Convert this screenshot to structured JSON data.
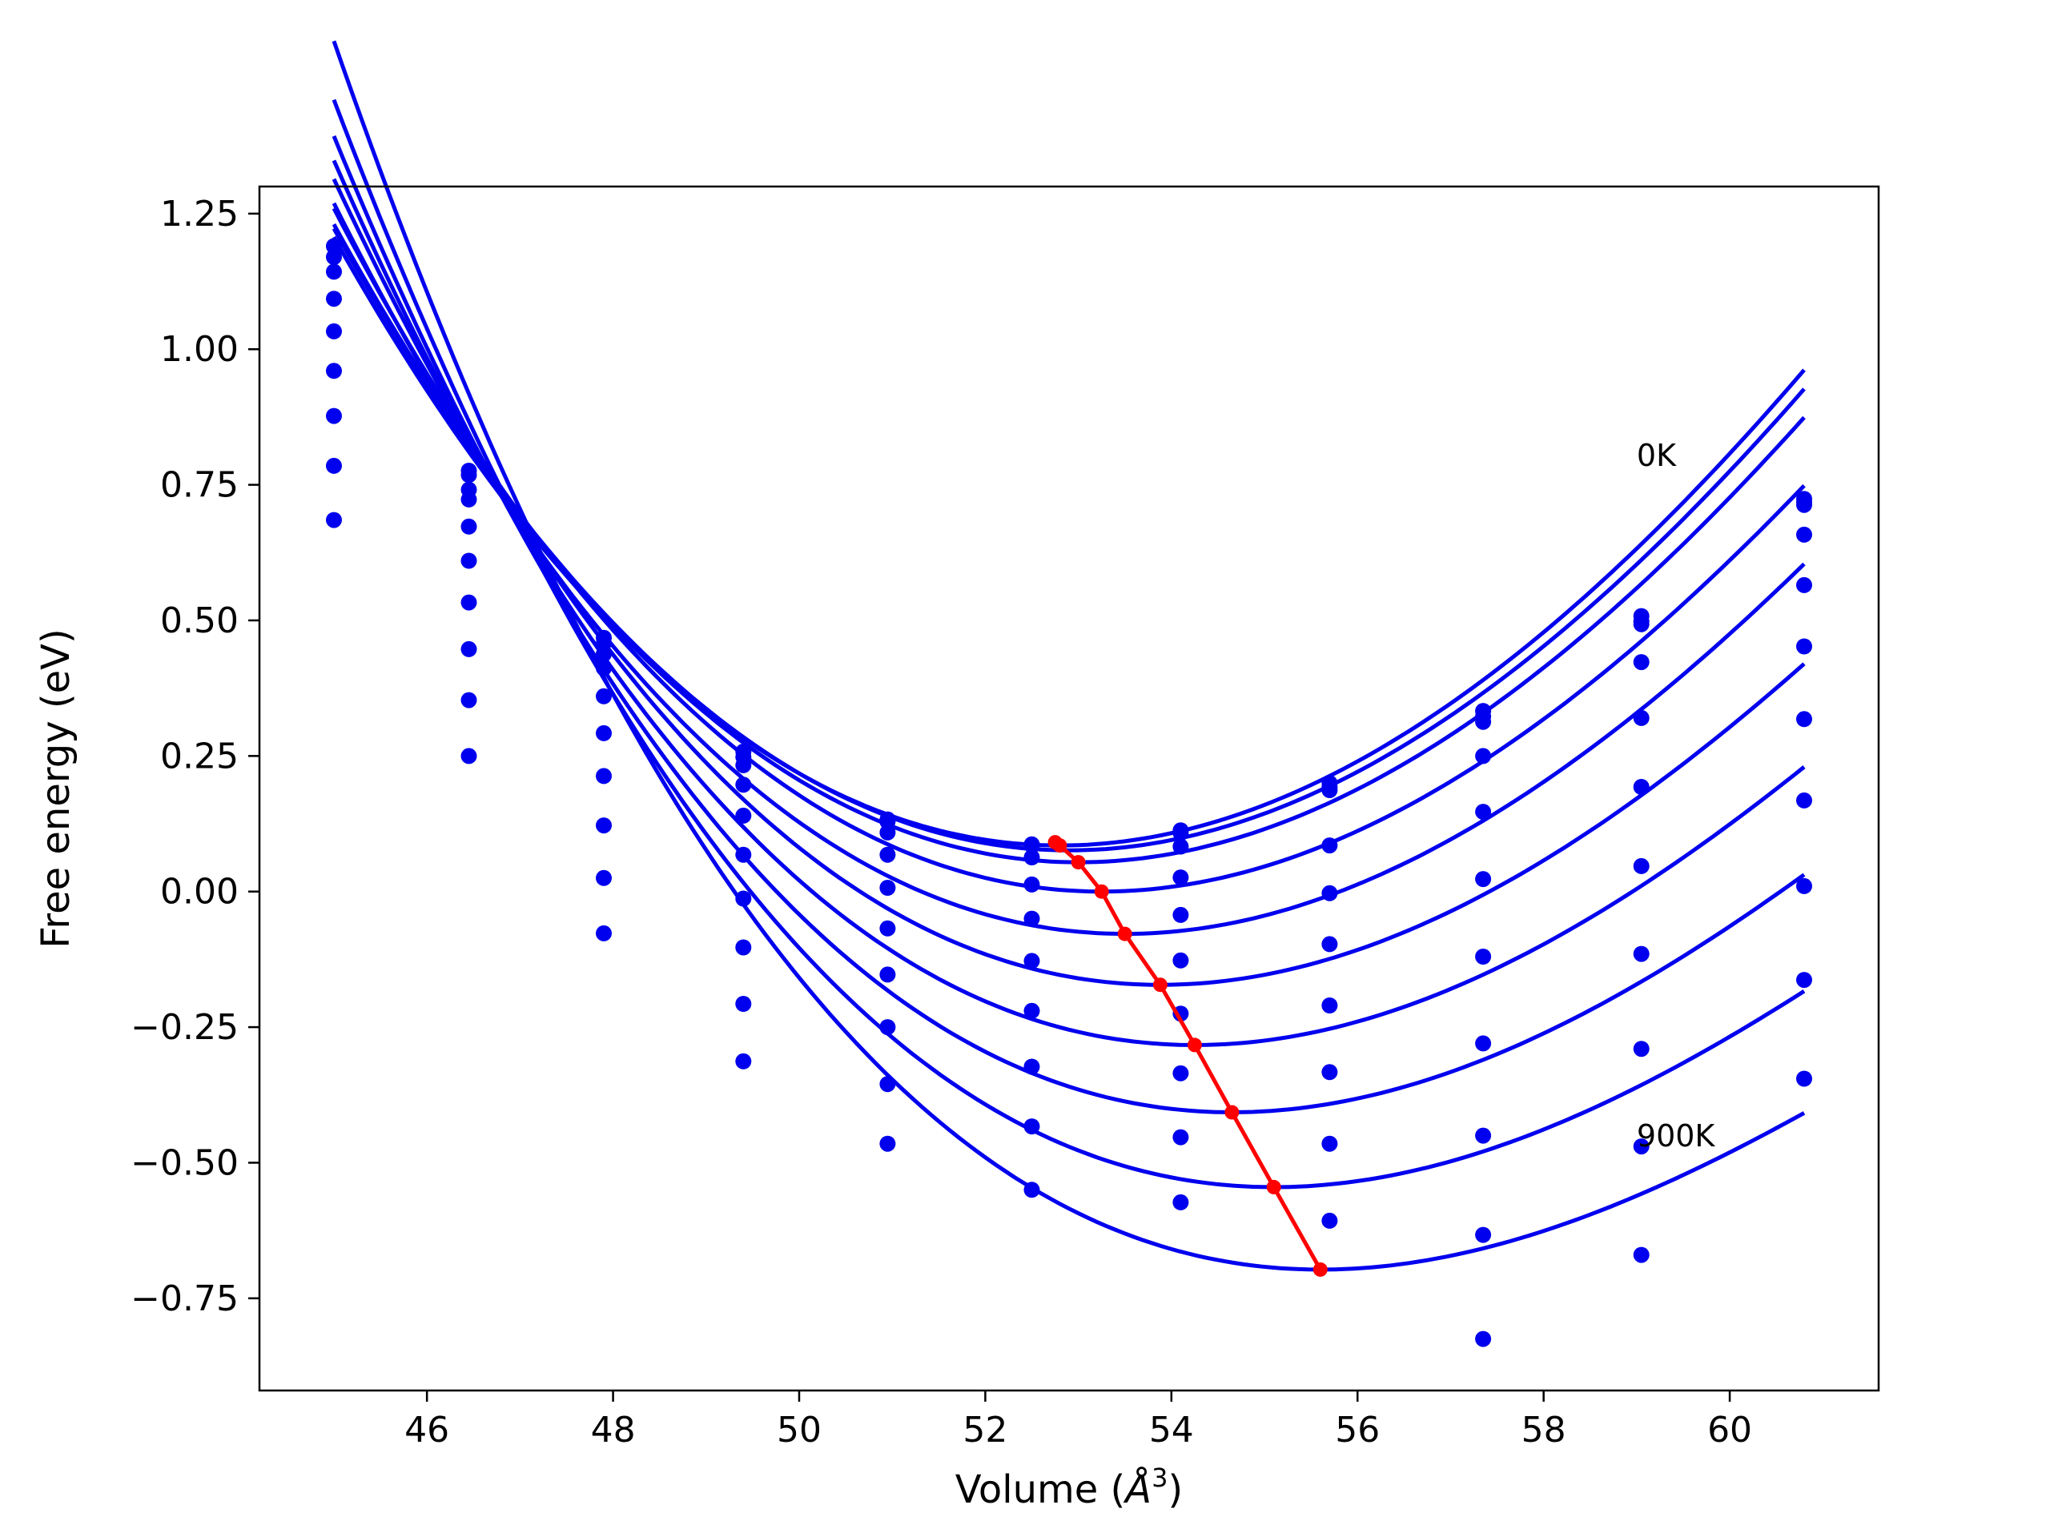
{
  "chart_data": {
    "type": "line",
    "title": "",
    "xlabel": "Volume (",
    "xlabel_unit_base": "Å",
    "xlabel_unit_exp": "3",
    "xlabel_close": ")",
    "ylabel": "Free energy (eV)",
    "xlim": [
      44.2,
      61.6
    ],
    "ylim": [
      -0.92,
      1.3
    ],
    "xticks": [
      46,
      48,
      50,
      52,
      54,
      56,
      58,
      60
    ],
    "xtick_labels": [
      "46",
      "48",
      "50",
      "52",
      "54",
      "56",
      "58",
      "60"
    ],
    "yticks": [
      -0.75,
      -0.5,
      -0.25,
      0.0,
      0.25,
      0.5,
      0.75,
      1.0,
      1.25
    ],
    "ytick_labels": [
      "−0.75",
      "−0.50",
      "−0.25",
      "0.00",
      "0.25",
      "0.50",
      "0.75",
      "1.00",
      "1.25"
    ],
    "grid": false,
    "annotations": [
      {
        "text": "0K",
        "x": 59.0,
        "y": 0.785
      },
      {
        "text": "900K",
        "x": 59.0,
        "y": -0.47
      }
    ],
    "x": [
      45.0,
      46.45,
      47.9,
      49.4,
      50.95,
      52.5,
      54.1,
      55.7,
      57.35,
      59.05,
      60.8
    ],
    "series": [
      {
        "values": [
          1.19,
          0.776,
          0.468,
          0.258,
          0.133,
          0.087,
          0.113,
          0.2,
          0.333,
          0.508,
          0.724
        ]
      },
      {
        "values": [
          1.17,
          0.768,
          0.458,
          0.248,
          0.129,
          0.085,
          0.108,
          0.193,
          0.323,
          0.498,
          0.718
        ]
      },
      {
        "values": [
          1.143,
          0.741,
          0.438,
          0.233,
          0.109,
          0.063,
          0.083,
          0.187,
          0.313,
          0.493,
          0.713
        ]
      },
      {
        "values": [
          1.093,
          0.723,
          0.412,
          0.197,
          0.068,
          0.013,
          0.026,
          0.085,
          0.25,
          0.423,
          0.658
        ]
      },
      {
        "values": [
          1.033,
          0.673,
          0.36,
          0.14,
          0.007,
          -0.05,
          -0.043,
          -0.003,
          0.147,
          0.32,
          0.565
        ]
      },
      {
        "values": [
          0.96,
          0.61,
          0.292,
          0.068,
          -0.068,
          -0.128,
          -0.127,
          -0.097,
          0.023,
          0.193,
          0.452
        ]
      },
      {
        "values": [
          0.877,
          0.533,
          0.213,
          -0.013,
          -0.153,
          -0.22,
          -0.225,
          -0.21,
          -0.12,
          0.047,
          0.318
        ]
      },
      {
        "values": [
          0.785,
          0.447,
          0.122,
          -0.103,
          -0.25,
          -0.323,
          -0.335,
          -0.333,
          -0.28,
          -0.115,
          0.168
        ]
      },
      {
        "values": [
          0.685,
          0.353,
          0.025,
          -0.207,
          -0.355,
          -0.433,
          -0.453,
          -0.465,
          -0.45,
          -0.29,
          0.01
        ]
      },
      {
        "values": [
          null,
          0.25,
          -0.077,
          -0.313,
          -0.465,
          -0.55,
          -0.573,
          -0.607,
          -0.633,
          -0.47,
          -0.163
        ]
      },
      {
        "values": [
          null,
          null,
          null,
          null,
          null,
          null,
          null,
          null,
          -0.825,
          -0.67,
          -0.345
        ]
      }
    ],
    "fitted_curves": [
      {
        "v0": 52.8,
        "emin": 0.085,
        "a": 0.0161,
        "b": -0.0003,
        "x_range": [
          45.0,
          60.8
        ]
      },
      {
        "v0": 52.9,
        "emin": 0.076,
        "a": 0.016,
        "b": -0.0003,
        "x_range": [
          45.0,
          60.8
        ]
      },
      {
        "v0": 53.0,
        "emin": 0.054,
        "a": 0.0159,
        "b": -0.00031,
        "x_range": [
          45.0,
          60.8
        ]
      },
      {
        "v0": 53.25,
        "emin": 0.0,
        "a": 0.0157,
        "b": -0.00034,
        "x_range": [
          45.0,
          60.8
        ]
      },
      {
        "v0": 53.5,
        "emin": -0.078,
        "a": 0.0155,
        "b": -0.00037,
        "x_range": [
          45.0,
          60.8
        ]
      },
      {
        "v0": 53.88,
        "emin": -0.172,
        "a": 0.0152,
        "b": -0.00041,
        "x_range": [
          45.0,
          60.8
        ]
      },
      {
        "v0": 54.25,
        "emin": -0.283,
        "a": 0.0149,
        "b": -0.00045,
        "x_range": [
          45.0,
          60.8
        ]
      },
      {
        "v0": 54.65,
        "emin": -0.407,
        "a": 0.0146,
        "b": -0.00049,
        "x_range": [
          45.0,
          60.8
        ]
      },
      {
        "v0": 55.1,
        "emin": -0.545,
        "a": 0.0142,
        "b": -0.00054,
        "x_range": [
          45.0,
          60.8
        ]
      },
      {
        "v0": 55.6,
        "emin": -0.697,
        "a": 0.0138,
        "b": -0.0006,
        "x_range": [
          45.0,
          60.8
        ]
      }
    ],
    "minimum_line": {
      "x": [
        52.75,
        52.8,
        53.0,
        53.25,
        53.5,
        53.88,
        54.25,
        54.65,
        55.1,
        55.6
      ],
      "y": [
        0.091,
        0.085,
        0.054,
        0.0,
        -0.078,
        -0.172,
        -0.283,
        -0.407,
        -0.545,
        -0.697
      ]
    },
    "colors": {
      "curves": "#0000ee",
      "points": "#0000ee",
      "minimum_line": "#ff0000",
      "axes": "#000000"
    }
  }
}
